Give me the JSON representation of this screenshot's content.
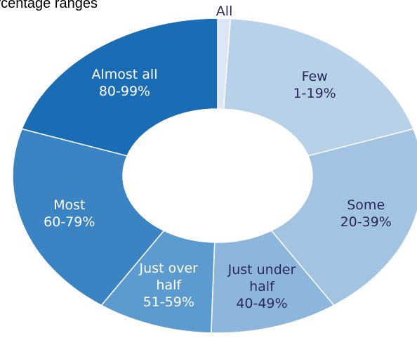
{
  "chart_data": {
    "type": "donut",
    "title": "Percentage ranges",
    "categories": [
      "All",
      "Few",
      "Some",
      "Just under half",
      "Just over half",
      "Most",
      "Almost all"
    ],
    "ranges": [
      "",
      "1-19%",
      "20-39%",
      "40-49%",
      "51-59%",
      "60-79%",
      "80-99%"
    ],
    "values": [
      1,
      19,
      20,
      10,
      9,
      20,
      20
    ],
    "colors": [
      "#dce6f4",
      "#b7d1e8",
      "#a2c4e2",
      "#8db6dc",
      "#5b9bcf",
      "#3b84c4",
      "#1a6db5"
    ],
    "label_colors": [
      "#2a2a5a",
      "#2a2a5a",
      "#2a2a5a",
      "#2a2a5a",
      "#ffffff",
      "#ffffff",
      "#ffffff"
    ]
  }
}
